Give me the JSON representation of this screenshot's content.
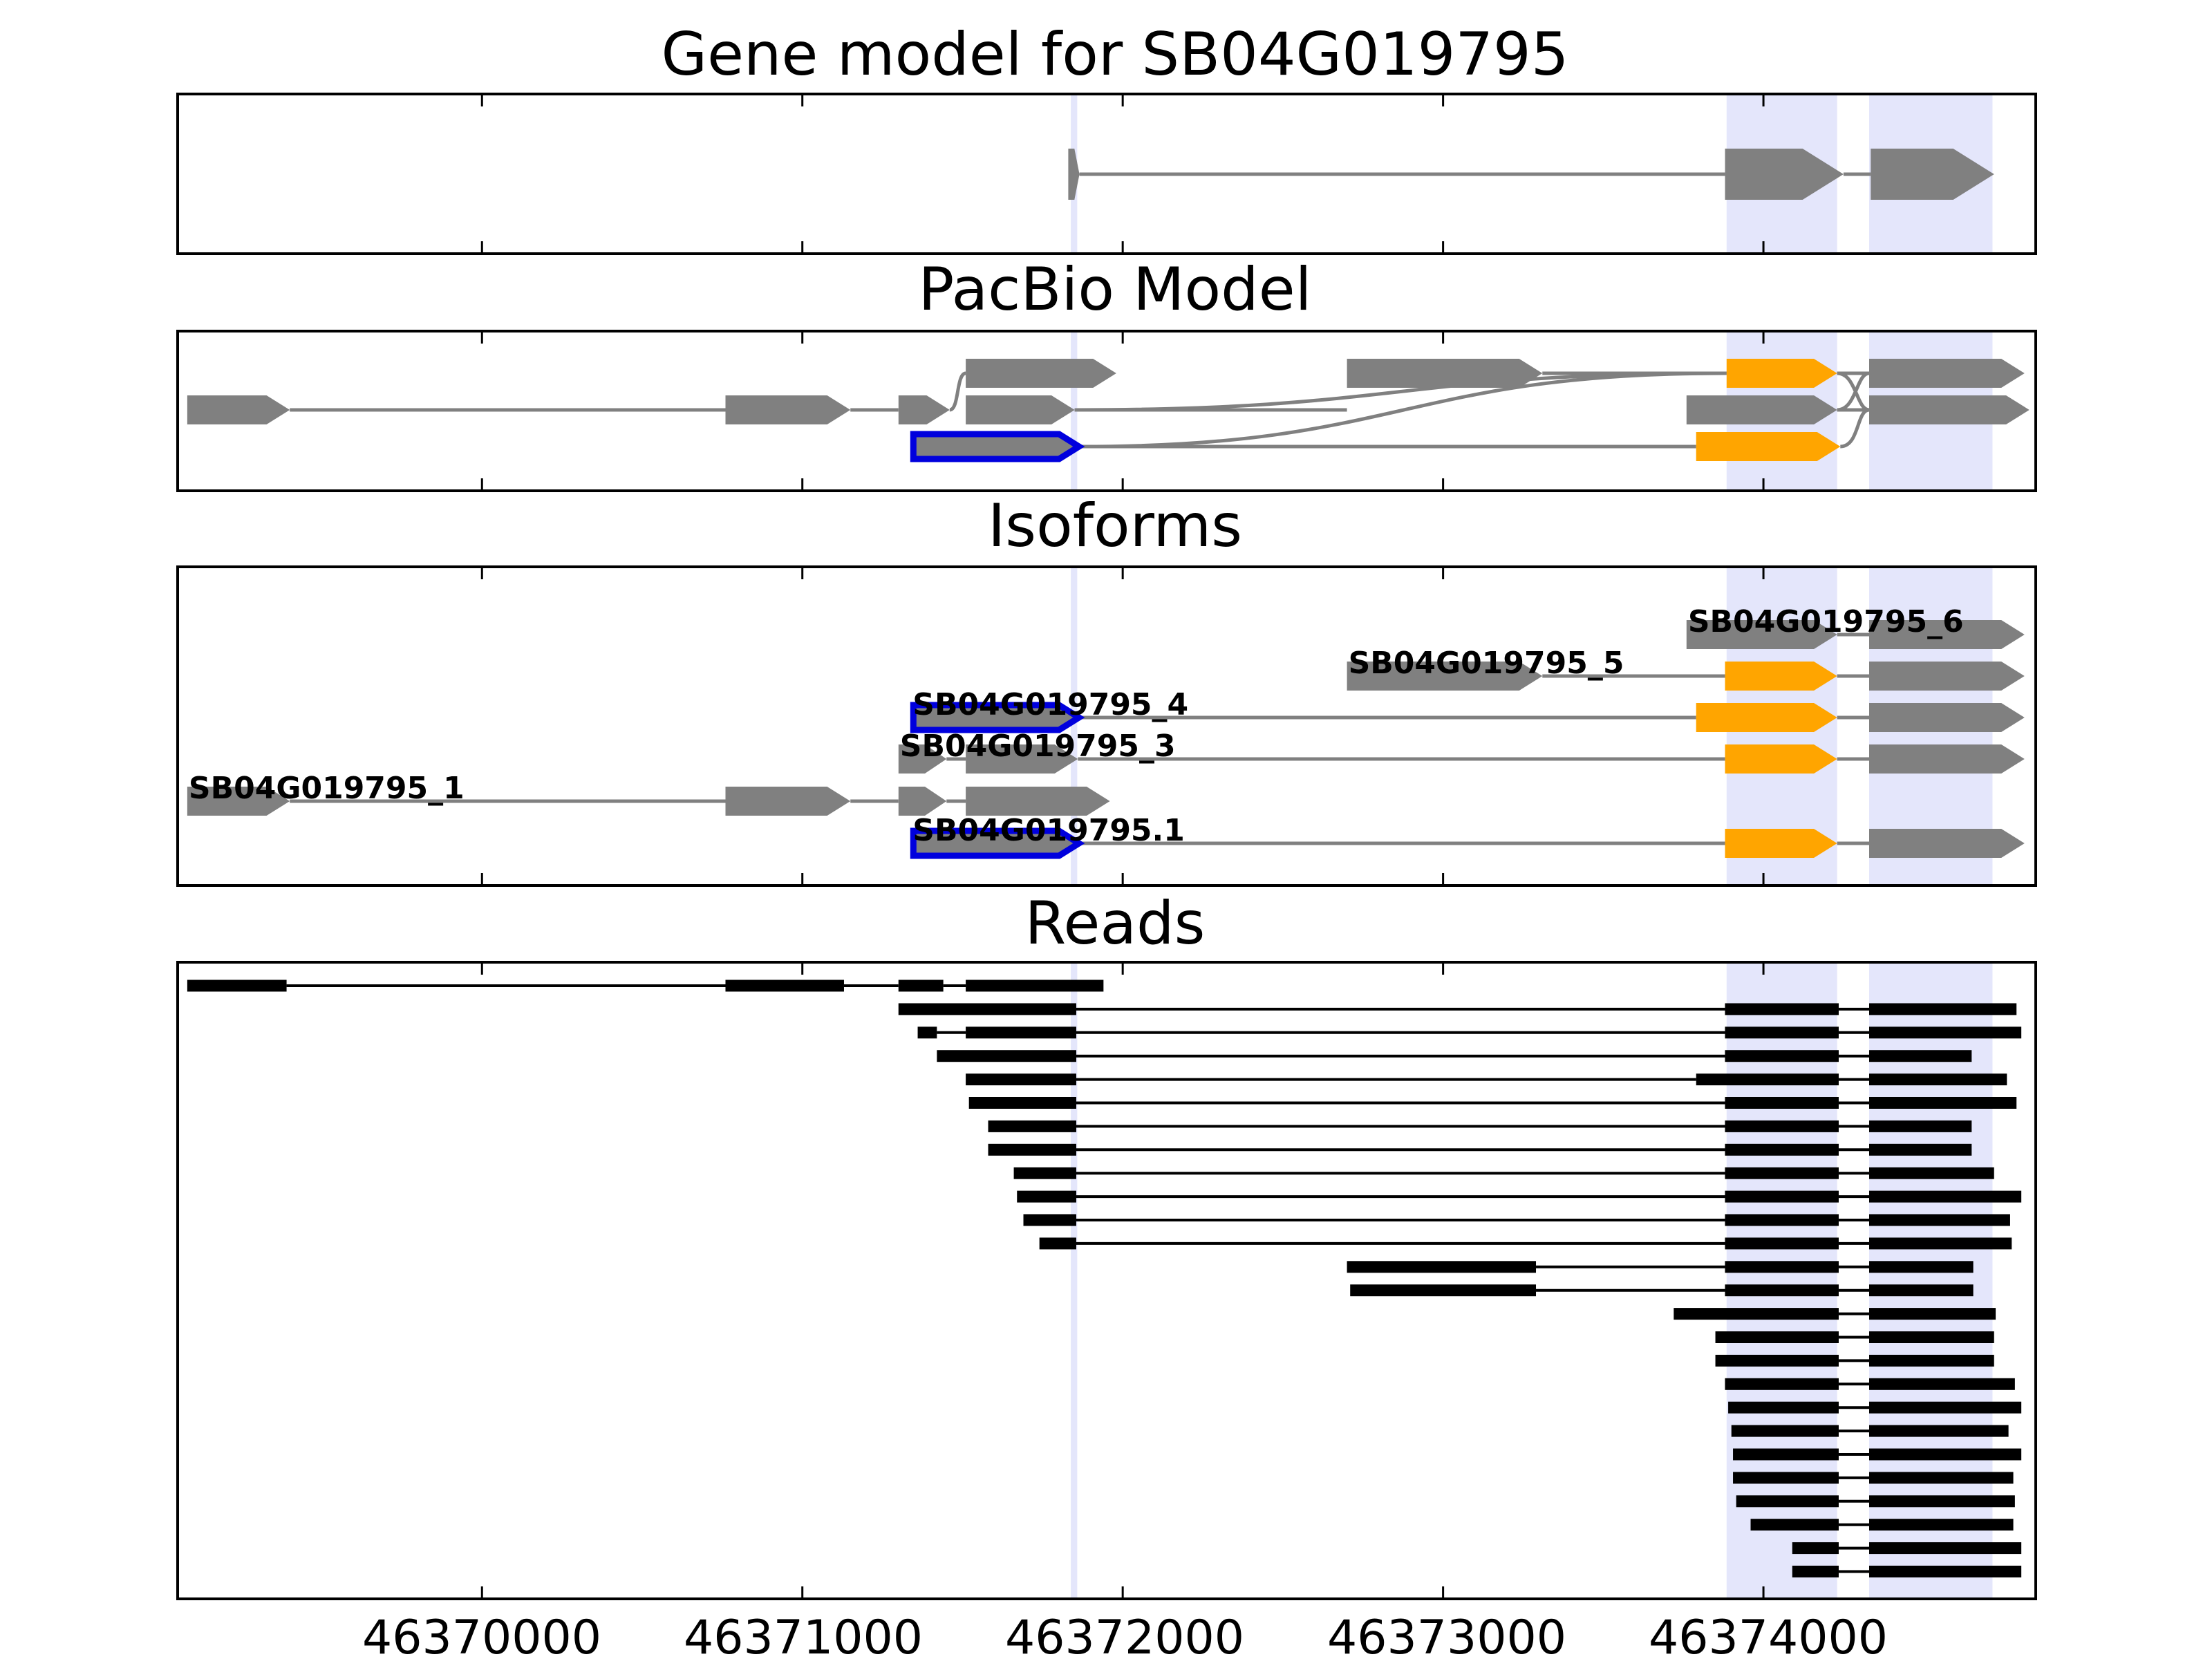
{
  "figure": {
    "titles": {
      "gene_model": "Gene model for SB04G019795",
      "pacbio": "PacBio Model",
      "isoforms": "Isoforms",
      "reads": "Reads"
    },
    "x_ticks": [
      46370000,
      46371000,
      46372000,
      46373000,
      46374000
    ],
    "x_tick_labels": [
      "46370000",
      "46371000",
      "46372000",
      "46373000",
      "46374000"
    ],
    "xlim": [
      46369050,
      46374850
    ]
  },
  "colors": {
    "exon": "#808080",
    "intron": "#808080",
    "cds_highlight": "#ffa500",
    "selected_outline": "#0000dd",
    "shaded_region": "#e4e6fb",
    "read": "#000000"
  },
  "chart_data": {
    "type": "gene-track",
    "title": "Gene model for SB04G019795",
    "shaded_regions": [
      [
        46371838,
        46371858
      ],
      [
        46373885,
        46374230
      ],
      [
        46374330,
        46374715
      ]
    ],
    "gene_model": {
      "exons": [
        [
          46371830,
          46371865
        ],
        [
          46373880,
          46374250
        ],
        [
          46374335,
          46374720
        ]
      ]
    },
    "pacbio": {
      "exons": [
        {
          "row": 1,
          "start": 46371510,
          "end": 46371980,
          "color": "exon"
        },
        {
          "row": 1,
          "start": 46372700,
          "end": 46373310,
          "color": "exon"
        },
        {
          "row": 1,
          "start": 46373885,
          "end": 46374230,
          "color": "cds_highlight"
        },
        {
          "row": 1,
          "start": 46374330,
          "end": 46374815,
          "color": "exon"
        },
        {
          "row": 2,
          "start": 46369080,
          "end": 46369400,
          "color": "exon"
        },
        {
          "row": 2,
          "start": 46370760,
          "end": 46371150,
          "color": "exon"
        },
        {
          "row": 2,
          "start": 46371300,
          "end": 46371460,
          "color": "exon"
        },
        {
          "row": 2,
          "start": 46371510,
          "end": 46371850,
          "color": "exon"
        },
        {
          "row": 2,
          "start": 46373760,
          "end": 46374230,
          "color": "exon"
        },
        {
          "row": 2,
          "start": 46374330,
          "end": 46374830,
          "color": "exon"
        },
        {
          "row": 3,
          "start": 46371340,
          "end": 46371870,
          "color": "exon",
          "outline": true
        },
        {
          "row": 3,
          "start": 46373790,
          "end": 46374240,
          "color": "cds_highlight"
        }
      ]
    },
    "isoforms": [
      {
        "name": "SB04G019795_6",
        "exons": [
          [
            46373760,
            46374230
          ],
          [
            46374330,
            46374815
          ]
        ],
        "cds": [],
        "label_at": 46373760
      },
      {
        "name": "SB04G019795_5",
        "exons": [
          [
            46372700,
            46373310
          ],
          [
            46373880,
            46374230
          ],
          [
            46374330,
            46374815
          ]
        ],
        "cds": [
          [
            46373880,
            46374230
          ]
        ],
        "label_at": 46372700
      },
      {
        "name": "SB04G019795_4",
        "exons": [
          [
            46371340,
            46371870
          ],
          [
            46373790,
            46374230
          ],
          [
            46374330,
            46374815
          ]
        ],
        "cds": [
          [
            46373790,
            46374230
          ]
        ],
        "label_at": 46371340,
        "outline": [
          46371340,
          46371870
        ]
      },
      {
        "name": "SB04G019795_3",
        "exons": [
          [
            46371300,
            46371450
          ],
          [
            46371510,
            46371860
          ],
          [
            46373880,
            46374230
          ],
          [
            46374330,
            46374815
          ]
        ],
        "cds": [
          [
            46373880,
            46374230
          ]
        ],
        "label_at": 46371300
      },
      {
        "name": "SB04G019795_1",
        "exons": [
          [
            46369080,
            46369400
          ],
          [
            46370760,
            46371150
          ],
          [
            46371300,
            46371450
          ],
          [
            46371510,
            46371960
          ]
        ],
        "cds": [],
        "label_at": 46369080
      },
      {
        "name": "SB04G019795.1",
        "exons": [
          [
            46371340,
            46371870
          ],
          [
            46373880,
            46374230
          ],
          [
            46374330,
            46374815
          ]
        ],
        "cds": [
          [
            46373880,
            46374230
          ]
        ],
        "label_at": 46371340,
        "outline": [
          46371340,
          46371870
        ]
      }
    ],
    "reads": [
      [
        [
          46369080,
          46369390
        ],
        [
          46370760,
          46371130
        ],
        [
          46371300,
          46371440
        ],
        [
          46371510,
          46371940
        ]
      ],
      [
        [
          46371300,
          46371855
        ],
        [
          46373880,
          46374235
        ],
        [
          46374330,
          46374790
        ]
      ],
      [
        [
          46371360,
          46371420
        ],
        [
          46371510,
          46371855
        ],
        [
          46373880,
          46374235
        ],
        [
          46374330,
          46374805
        ]
      ],
      [
        [
          46371420,
          46371855
        ],
        [
          46373880,
          46374235
        ],
        [
          46374330,
          46374650
        ]
      ],
      [
        [
          46371510,
          46371855
        ],
        [
          46373790,
          46374235
        ],
        [
          46374330,
          46374760
        ]
      ],
      [
        [
          46371520,
          46371855
        ],
        [
          46373880,
          46374235
        ],
        [
          46374330,
          46374790
        ]
      ],
      [
        [
          46371580,
          46371855
        ],
        [
          46373880,
          46374235
        ],
        [
          46374330,
          46374650
        ]
      ],
      [
        [
          46371580,
          46371855
        ],
        [
          46373880,
          46374235
        ],
        [
          46374330,
          46374650
        ]
      ],
      [
        [
          46371660,
          46371855
        ],
        [
          46373880,
          46374235
        ],
        [
          46374330,
          46374720
        ]
      ],
      [
        [
          46371670,
          46371855
        ],
        [
          46373880,
          46374235
        ],
        [
          46374330,
          46374805
        ]
      ],
      [
        [
          46371690,
          46371855
        ],
        [
          46373880,
          46374235
        ],
        [
          46374330,
          46374770
        ]
      ],
      [
        [
          46371740,
          46371855
        ],
        [
          46373880,
          46374235
        ],
        [
          46374330,
          46374775
        ]
      ],
      [
        [
          46372700,
          46373290
        ],
        [
          46373880,
          46374235
        ],
        [
          46374330,
          46374655
        ]
      ],
      [
        [
          46372710,
          46373290
        ],
        [
          46373880,
          46374235
        ],
        [
          46374330,
          46374655
        ]
      ],
      [
        [
          46373720,
          46374235
        ],
        [
          46374330,
          46374725
        ]
      ],
      [
        [
          46373850,
          46374235
        ],
        [
          46374330,
          46374720
        ]
      ],
      [
        [
          46373850,
          46374235
        ],
        [
          46374330,
          46374720
        ]
      ],
      [
        [
          46373880,
          46374235
        ],
        [
          46374330,
          46374785
        ]
      ],
      [
        [
          46373890,
          46374235
        ],
        [
          46374330,
          46374805
        ]
      ],
      [
        [
          46373900,
          46374235
        ],
        [
          46374330,
          46374765
        ]
      ],
      [
        [
          46373905,
          46374235
        ],
        [
          46374330,
          46374805
        ]
      ],
      [
        [
          46373905,
          46374235
        ],
        [
          46374330,
          46374780
        ]
      ],
      [
        [
          46373915,
          46374235
        ],
        [
          46374330,
          46374785
        ]
      ],
      [
        [
          46373960,
          46374235
        ],
        [
          46374330,
          46374780
        ]
      ],
      [
        [
          46374090,
          46374235
        ],
        [
          46374330,
          46374805
        ]
      ],
      [
        [
          46374090,
          46374235
        ],
        [
          46374330,
          46374805
        ]
      ]
    ]
  }
}
